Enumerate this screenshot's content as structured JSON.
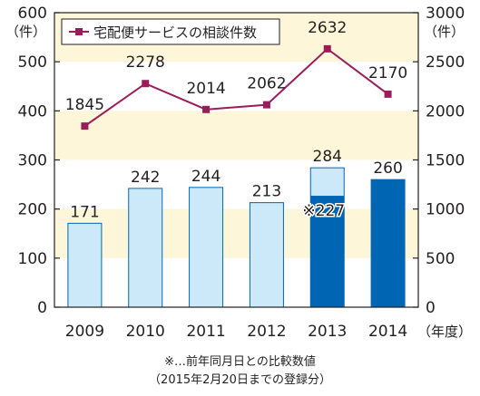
{
  "chart_data": {
    "type": "bar+line",
    "categories": [
      "2009",
      "2010",
      "2011",
      "2012",
      "2013",
      "2014"
    ],
    "x_unit": "（年度）",
    "left_axis": {
      "unit": "（件）",
      "ticks": [
        0,
        100,
        200,
        300,
        400,
        500,
        600
      ],
      "ylim": [
        0,
        600
      ]
    },
    "right_axis": {
      "unit": "（件）",
      "ticks": [
        0,
        500,
        1000,
        1500,
        2000,
        2500,
        3000
      ],
      "ylim": [
        0,
        3000
      ]
    },
    "bars": {
      "values": [
        171,
        242,
        244,
        213,
        284,
        260
      ],
      "labels": [
        "171",
        "242",
        "244",
        "213",
        "284",
        "260"
      ],
      "partial_value": {
        "category": "2013",
        "value": 227,
        "label": "※227"
      },
      "colors": {
        "light": "#cce9f9",
        "dark": "#0066b3",
        "stroke": "#0066b3"
      }
    },
    "line": {
      "name": "宅配便サービスの相談件数",
      "values": [
        1845,
        2278,
        2014,
        2062,
        2632,
        2170
      ],
      "labels": [
        "1845",
        "2278",
        "2014",
        "2062",
        "2632",
        "2170"
      ],
      "color": "#9b1c5a",
      "axis": "right"
    },
    "legend": {
      "label": "宅配便サービスの相談件数",
      "position": "top-left"
    },
    "band_color": "#fdf6d8",
    "grid": false
  },
  "notes": {
    "line1": "※…前年同月日との比較数値",
    "line2": "（2015年2月20日までの登録分）"
  }
}
